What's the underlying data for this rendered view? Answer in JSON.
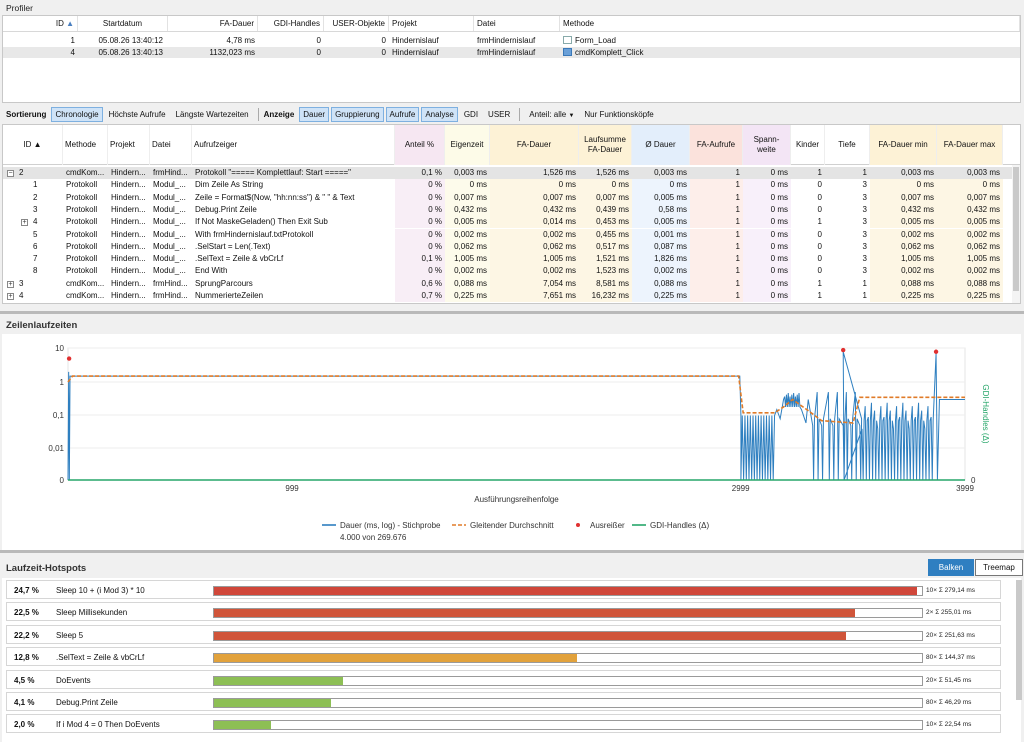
{
  "window_title": "Profiler",
  "top_grid": {
    "headers": [
      "ID",
      "Startdatum",
      "FA-Dauer",
      "GDI-Handles",
      "USER-Objekte",
      "Projekt",
      "Datei",
      "Methode"
    ],
    "sort_indicator": "▲",
    "rows": [
      {
        "id": "1",
        "start": "05.08.26 13:40:12",
        "dauer": "4,78 ms",
        "gdi": "0",
        "user": "0",
        "projekt": "Hindernislauf",
        "datei": "frmHindernislauf",
        "methode": "Form_Load"
      },
      {
        "id": "4",
        "start": "05.08.26 13:40:13",
        "dauer": "1132,023 ms",
        "gdi": "0",
        "user": "0",
        "projekt": "Hindernislauf",
        "datei": "frmHindernislauf",
        "methode": "cmdKomplett_Click"
      }
    ]
  },
  "toolbar": {
    "sort_label": "Sortierung",
    "sort_buttons": [
      "Chronologie",
      "Höchste Aufrufe",
      "Längste Wartezeiten"
    ],
    "view_label": "Anzeige",
    "view_buttons": [
      "Dauer",
      "Gruppierung",
      "Aufrufe",
      "Analyse",
      "GDI",
      "USER"
    ],
    "anteil": "Anteil: alle",
    "nur": "Nur Funktionsköpfe"
  },
  "mid_grid": {
    "headers": [
      "ID",
      "Methode",
      "Projekt",
      "Datei",
      "Aufrufzeiger",
      "Anteil %",
      "Eigenzeit",
      "FA-Dauer",
      "Laufsumme FA-Dauer",
      "Ø Dauer",
      "FA-Aufrufe",
      "Spann-weite",
      "Kinder",
      "Tiefe",
      "FA-Dauer min",
      "FA-Dauer max"
    ],
    "rows": [
      [
        "2",
        "cmdKom...",
        "Hindern...",
        "frmHind...",
        "Protokoll \"===== Komplettlauf: Start =====\"",
        "0,1 %",
        "0,003 ms",
        "1,526 ms",
        "1,526 ms",
        "0,003 ms",
        "1",
        "0 ms",
        "1",
        "1",
        "0,003 ms",
        "0,003 ms"
      ],
      [
        "1",
        "Protokoll",
        "Hindern...",
        "Modul_...",
        "Dim Zeile As String",
        "0 %",
        "0 ms",
        "0 ms",
        "0 ms",
        "0 ms",
        "1",
        "0 ms",
        "0",
        "3",
        "0 ms",
        "0 ms"
      ],
      [
        "2",
        "Protokoll",
        "Hindern...",
        "Modul_...",
        "Zeile = Format$(Now, \"hh:nn:ss\") & \"  \" & Text",
        "0 %",
        "0,007 ms",
        "0,007 ms",
        "0,007 ms",
        "0,005 ms",
        "1",
        "0 ms",
        "0",
        "3",
        "0,007 ms",
        "0,007 ms"
      ],
      [
        "3",
        "Protokoll",
        "Hindern...",
        "Modul_...",
        "Debug.Print Zeile",
        "0 %",
        "0,432 ms",
        "0,432 ms",
        "0,439 ms",
        "0,58 ms",
        "1",
        "0 ms",
        "0",
        "3",
        "0,432 ms",
        "0,432 ms"
      ],
      [
        "4",
        "Protokoll",
        "Hindern...",
        "Modul_...",
        "If Not MaskeGeladen() Then Exit Sub",
        "0 %",
        "0,005 ms",
        "0,014 ms",
        "0,453 ms",
        "0,005 ms",
        "1",
        "0 ms",
        "1",
        "3",
        "0,005 ms",
        "0,005 ms"
      ],
      [
        "5",
        "Protokoll",
        "Hindern...",
        "Modul_...",
        "With frmHindernislauf.txtProtokoll",
        "0 %",
        "0,002 ms",
        "0,002 ms",
        "0,455 ms",
        "0,001 ms",
        "1",
        "0 ms",
        "0",
        "3",
        "0,002 ms",
        "0,002 ms"
      ],
      [
        "6",
        "Protokoll",
        "Hindern...",
        "Modul_...",
        ".SelStart = Len(.Text)",
        "0 %",
        "0,062 ms",
        "0,062 ms",
        "0,517 ms",
        "0,087 ms",
        "1",
        "0 ms",
        "0",
        "3",
        "0,062 ms",
        "0,062 ms"
      ],
      [
        "7",
        "Protokoll",
        "Hindern...",
        "Modul_...",
        ".SelText = Zeile & vbCrLf",
        "0,1 %",
        "1,005 ms",
        "1,005 ms",
        "1,521 ms",
        "1,826 ms",
        "1",
        "0 ms",
        "0",
        "3",
        "1,005 ms",
        "1,005 ms"
      ],
      [
        "8",
        "Protokoll",
        "Hindern...",
        "Modul_...",
        "End With",
        "0 %",
        "0,002 ms",
        "0,002 ms",
        "1,523 ms",
        "0,002 ms",
        "1",
        "0 ms",
        "0",
        "3",
        "0,002 ms",
        "0,002 ms"
      ],
      [
        "3",
        "cmdKom...",
        "Hindern...",
        "frmHind...",
        "SprungParcours",
        "0,6 %",
        "0,088 ms",
        "7,054 ms",
        "8,581 ms",
        "0,088 ms",
        "1",
        "0 ms",
        "1",
        "1",
        "0,088 ms",
        "0,088 ms"
      ],
      [
        "4",
        "cmdKom...",
        "Hindern...",
        "frmHind...",
        "NummerierteZeilen",
        "0,7 %",
        "0,225 ms",
        "7,651 ms",
        "16,232 ms",
        "0,225 ms",
        "1",
        "0 ms",
        "1",
        "1",
        "0,225 ms",
        "0,225 ms"
      ]
    ]
  },
  "chart_section_title": "Zeilenlaufzeiten",
  "chart_data": {
    "type": "line",
    "xlabel": "Ausführungsreihenfolge",
    "ylabel_right": "GDI-Handles (Δ)",
    "yscale": "log",
    "y_ticks": [
      "10",
      "1",
      "0,1",
      "0,01",
      "0"
    ],
    "y_right_ticks": [
      "0"
    ],
    "x_ticks": [
      "999",
      "2999",
      "3999"
    ],
    "xlim": [
      0,
      3999
    ],
    "legend": [
      "Dauer (ms, log) - Stichprobe",
      "Gleitender Durchschnitt",
      "Ausreißer",
      "GDI-Handles (Δ)"
    ],
    "legend_sub": "4.000 von 269.676",
    "colors": {
      "dauer": "#2e7fc0",
      "avg": "#e07b28",
      "outlier": "#e03030",
      "gdi": "#27a66a"
    },
    "series": [
      {
        "name": "Gleitender Durchschnitt",
        "points": [
          [
            0,
            1.0
          ],
          [
            20,
            1.5
          ],
          [
            2990,
            1.5
          ],
          [
            3010,
            0.12
          ],
          [
            3150,
            0.12
          ],
          [
            3190,
            0.18
          ],
          [
            3230,
            0.3
          ],
          [
            3300,
            0.14
          ],
          [
            3360,
            0.07
          ],
          [
            3500,
            0.06
          ],
          [
            3530,
            0.35
          ],
          [
            3999,
            0.35
          ]
        ]
      }
    ],
    "outliers": [
      [
        5,
        5
      ],
      [
        3456,
        9
      ],
      [
        3870,
        8
      ]
    ]
  },
  "hotspot_section_title": "Laufzeit-Hotspots",
  "hotspot_buttons": [
    "Balken",
    "Treemap"
  ],
  "hotspots": [
    {
      "pct": "24,7 %",
      "label": "Sleep 10 + (i Mod 3) * 10",
      "fraction": 0.993,
      "color": "#d0473a",
      "count": "10×  Σ 279,14 ms"
    },
    {
      "pct": "22,5 %",
      "label": "Sleep Millisekunden",
      "fraction": 0.905,
      "color": "#d0553a",
      "count": "2×  Σ 255,01 ms"
    },
    {
      "pct": "22,2 %",
      "label": "Sleep 5",
      "fraction": 0.892,
      "color": "#d0553a",
      "count": "20×  Σ 251,63 ms"
    },
    {
      "pct": "12,8 %",
      "label": ".SelText = Zeile & vbCrLf",
      "fraction": 0.513,
      "color": "#e2a23c",
      "count": "80×  Σ 144,37 ms"
    },
    {
      "pct": "4,5 %",
      "label": "DoEvents",
      "fraction": 0.182,
      "color": "#8dbf55",
      "count": "20×  Σ 51,45 ms"
    },
    {
      "pct": "4,1 %",
      "label": "Debug.Print Zeile",
      "fraction": 0.165,
      "color": "#8dbf55",
      "count": "80×  Σ 46,29 ms"
    },
    {
      "pct": "2,0 %",
      "label": "If i Mod 4 = 0 Then DoEvents",
      "fraction": 0.08,
      "color": "#8dbf55",
      "count": "10×  Σ 22,54 ms"
    }
  ]
}
